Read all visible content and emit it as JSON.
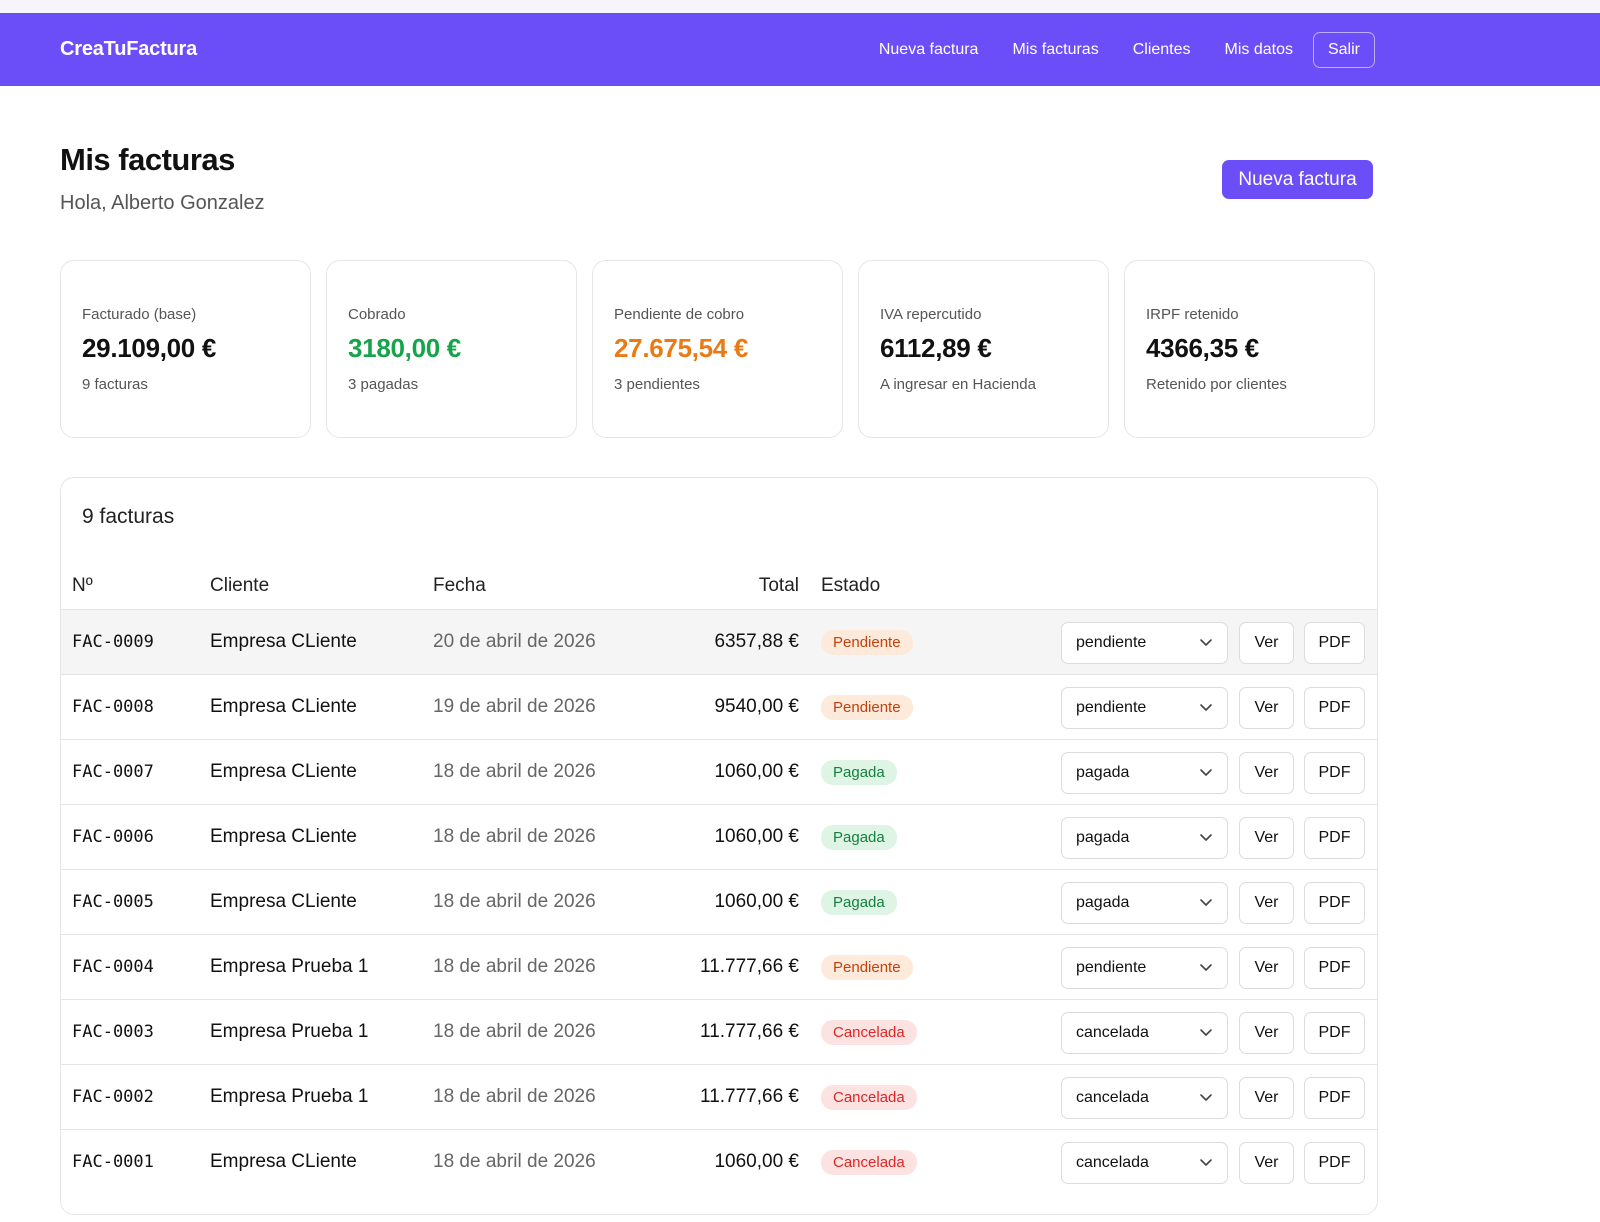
{
  "header": {
    "brand": "CreaTuFactura",
    "nav": [
      "Nueva factura",
      "Mis facturas",
      "Clientes",
      "Mis datos"
    ],
    "logout": "Salir"
  },
  "page": {
    "title": "Mis facturas",
    "greeting": "Hola, Alberto Gonzalez",
    "new_invoice_button": "Nueva factura"
  },
  "stats": [
    {
      "label": "Facturado (base)",
      "value": "29.109,00 €",
      "sub": "9 facturas",
      "color": "#111111"
    },
    {
      "label": "Cobrado",
      "value": "3180,00 €",
      "sub": "3 pagadas",
      "color": "#16a34a"
    },
    {
      "label": "Pendiente de cobro",
      "value": "27.675,54 €",
      "sub": "3 pendientes",
      "color": "#ea7a14"
    },
    {
      "label": "IVA repercutido",
      "value": "6112,89 €",
      "sub": "A ingresar en Hacienda",
      "color": "#111111"
    },
    {
      "label": "IRPF retenido",
      "value": "4366,35 €",
      "sub": "Retenido por clientes",
      "color": "#111111"
    }
  ],
  "table": {
    "title": "9 facturas",
    "columns": [
      "Nº",
      "Cliente",
      "Fecha",
      "Total",
      "Estado"
    ],
    "view_label": "Ver",
    "pdf_label": "PDF",
    "rows": [
      {
        "num": "FAC-0009",
        "client": "Empresa CLiente",
        "date": "20 de abril de 2026",
        "total": "6357,88 €",
        "status": "Pendiente",
        "select": "pendiente"
      },
      {
        "num": "FAC-0008",
        "client": "Empresa CLiente",
        "date": "19 de abril de 2026",
        "total": "9540,00 €",
        "status": "Pendiente",
        "select": "pendiente"
      },
      {
        "num": "FAC-0007",
        "client": "Empresa CLiente",
        "date": "18 de abril de 2026",
        "total": "1060,00 €",
        "status": "Pagada",
        "select": "pagada"
      },
      {
        "num": "FAC-0006",
        "client": "Empresa CLiente",
        "date": "18 de abril de 2026",
        "total": "1060,00 €",
        "status": "Pagada",
        "select": "pagada"
      },
      {
        "num": "FAC-0005",
        "client": "Empresa CLiente",
        "date": "18 de abril de 2026",
        "total": "1060,00 €",
        "status": "Pagada",
        "select": "pagada"
      },
      {
        "num": "FAC-0004",
        "client": "Empresa Prueba 1",
        "date": "18 de abril de 2026",
        "total": "11.777,66 €",
        "status": "Pendiente",
        "select": "pendiente"
      },
      {
        "num": "FAC-0003",
        "client": "Empresa Prueba 1",
        "date": "18 de abril de 2026",
        "total": "11.777,66 €",
        "status": "Cancelada",
        "select": "cancelada"
      },
      {
        "num": "FAC-0002",
        "client": "Empresa Prueba 1",
        "date": "18 de abril de 2026",
        "total": "11.777,66 €",
        "status": "Cancelada",
        "select": "cancelada"
      },
      {
        "num": "FAC-0001",
        "client": "Empresa CLiente",
        "date": "18 de abril de 2026",
        "total": "1060,00 €",
        "status": "Cancelada",
        "select": "cancelada"
      }
    ]
  },
  "colors": {
    "brand": "#6b4ef7",
    "pendiente": "#c2410c",
    "pagada": "#15803d",
    "cancelada": "#dc2626"
  }
}
